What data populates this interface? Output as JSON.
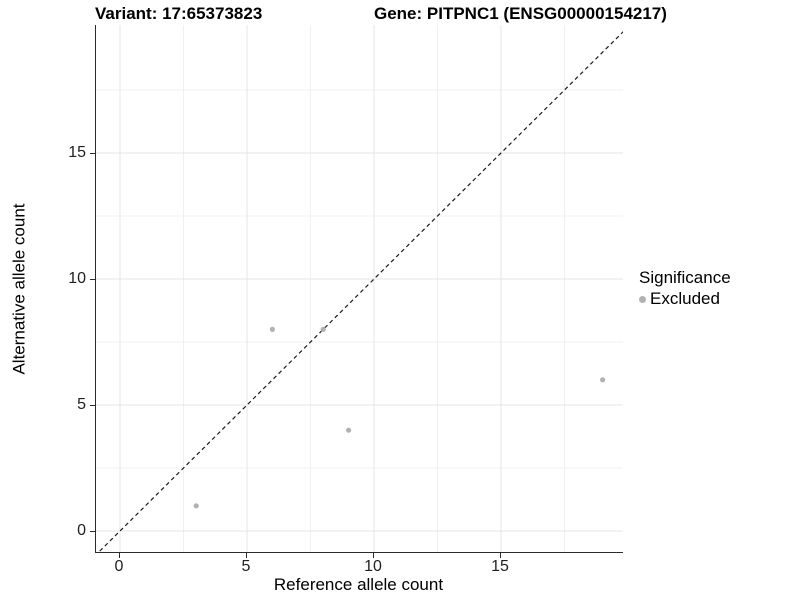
{
  "titles": {
    "variant": "Variant: 17:65373823",
    "gene": "Gene: PITPNC1 (ENSG00000154217)"
  },
  "chart_data": {
    "type": "scatter",
    "xlabel": "Reference allele count",
    "ylabel": "Alternative allele count",
    "x_ticks": [
      0,
      5,
      10,
      15
    ],
    "y_ticks": [
      0,
      5,
      10,
      15
    ],
    "xlim": [
      -0.95,
      19.8
    ],
    "ylim": [
      -0.85,
      20.1
    ],
    "grid": {
      "major": [
        0,
        5,
        10,
        15
      ],
      "minor": [
        2.5,
        7.5,
        12.5,
        17.5
      ],
      "major_color": "#e4e4e4",
      "minor_color": "#f0f0f0"
    },
    "diagonal": {
      "equation": "y = x",
      "style": "dashed",
      "color": "#1a1a1a",
      "from": -1,
      "to": 21
    },
    "series": [
      {
        "name": "Excluded",
        "color": "#b1b1b1",
        "points": [
          [
            3,
            1
          ],
          [
            6,
            8
          ],
          [
            8,
            8
          ],
          [
            9,
            4
          ],
          [
            19,
            6
          ]
        ]
      }
    ],
    "legend": {
      "title": "Significance",
      "position": "right",
      "entries": [
        {
          "label": "Excluded",
          "color": "#b1b1b1"
        }
      ]
    }
  }
}
